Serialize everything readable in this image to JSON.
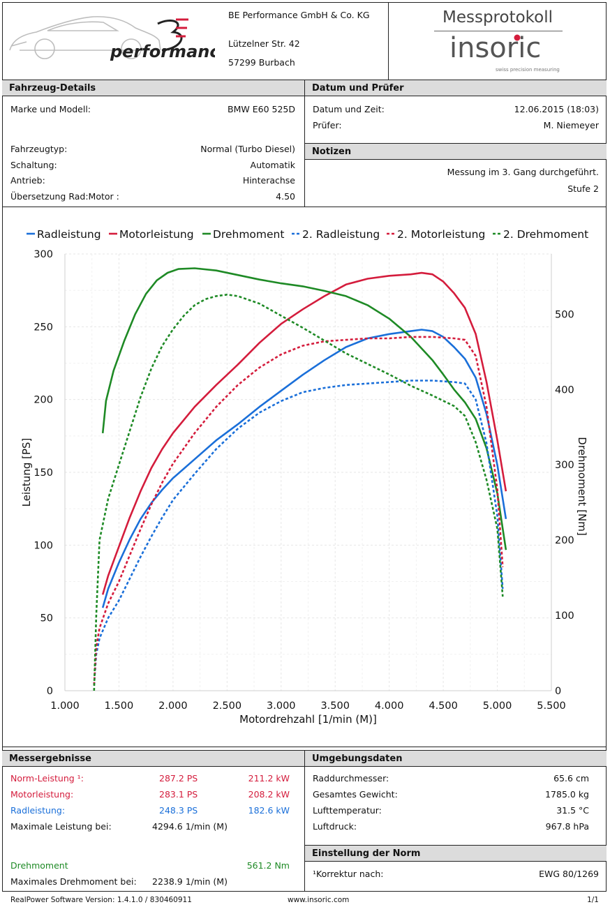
{
  "header": {
    "company_name": "BE Performance GmbH & Co. KG",
    "street": "Lützelner Str. 42",
    "city": "57299 Burbach",
    "logo_text": "performance",
    "protocol_title": "Messprotokoll",
    "brand": "insoric",
    "brand_tagline": "swiss precision measuring"
  },
  "vehicle": {
    "title": "Fahrzeug-Details",
    "make_label": "Marke und Modell:",
    "make_value": "BMW E60 525D",
    "type_label": "Fahrzeugtyp:",
    "type_value": "Normal (Turbo Diesel)",
    "gear_label": "Schaltung:",
    "gear_value": "Automatik",
    "drive_label": "Antrieb:",
    "drive_value": "Hinterachse",
    "ratio_label": "Übersetzung Rad:Motor :",
    "ratio_value": "4.50"
  },
  "date_examiner": {
    "title": "Datum und Prüfer",
    "date_label": "Datum und Zeit:",
    "date_value": "12.06.2015 (18:03)",
    "examiner_label": "Prüfer:",
    "examiner_value": "M. Niemeyer"
  },
  "notes": {
    "title": "Notizen",
    "line1": "Messung im 3. Gang durchgeführt.",
    "line2": "Stufe 2"
  },
  "colors": {
    "wheel": "#1a6fd9",
    "engine": "#d41c3c",
    "torque": "#1e8a25"
  },
  "chart_data": {
    "type": "line",
    "xlabel": "Motordrehzahl [1/min (M)]",
    "ylabel": "Leistung [PS]",
    "y2label": "Drehmoment [Nm]",
    "xlim": [
      1000,
      5500
    ],
    "ylim": [
      0,
      300
    ],
    "y2lim": [
      0,
      580
    ],
    "xticks": [
      1000,
      1500,
      2000,
      2500,
      3000,
      3500,
      4000,
      4500,
      5000,
      5500
    ],
    "xtick_labels": [
      "1.000",
      "1.500",
      "2.000",
      "2.500",
      "3.000",
      "3.500",
      "4.000",
      "4.500",
      "5.000",
      "5.500"
    ],
    "yticks": [
      0,
      50,
      100,
      150,
      200,
      250,
      300
    ],
    "y2ticks": [
      0,
      100,
      200,
      300,
      400,
      500
    ],
    "grid": true,
    "legend": "top",
    "series": [
      {
        "name": "Radleistung",
        "axis": "left",
        "style": "solid",
        "color": "#1a6fd9",
        "x": [
          1350,
          1400,
          1500,
          1600,
          1700,
          1800,
          1900,
          2000,
          2200,
          2400,
          2600,
          2800,
          3000,
          3200,
          3400,
          3600,
          3800,
          4000,
          4200,
          4300,
          4400,
          4500,
          4600,
          4700,
          4800,
          4900,
          5000,
          5080
        ],
        "y": [
          57,
          70,
          88,
          104,
          118,
          129,
          138,
          146,
          159,
          172,
          183,
          195,
          206,
          217,
          227,
          236,
          242,
          245,
          247,
          248,
          247,
          243,
          236,
          228,
          215,
          190,
          155,
          118
        ]
      },
      {
        "name": "Motorleistung",
        "axis": "left",
        "style": "solid",
        "color": "#d41c3c",
        "x": [
          1350,
          1400,
          1500,
          1600,
          1700,
          1800,
          1900,
          2000,
          2200,
          2400,
          2600,
          2800,
          3000,
          3200,
          3400,
          3600,
          3800,
          4000,
          4200,
          4300,
          4400,
          4500,
          4600,
          4700,
          4800,
          4900,
          5000,
          5080
        ],
        "y": [
          66,
          79,
          99,
          119,
          137,
          153,
          166,
          177,
          195,
          210,
          224,
          239,
          252,
          262,
          271,
          279,
          283,
          285,
          286,
          287,
          286,
          281,
          273,
          263,
          245,
          212,
          172,
          137
        ]
      },
      {
        "name": "Drehmoment",
        "axis": "right",
        "style": "solid",
        "color": "#1e8a25",
        "x": [
          1350,
          1380,
          1450,
          1550,
          1650,
          1750,
          1850,
          1950,
          2050,
          2200,
          2400,
          2600,
          2800,
          3000,
          3200,
          3400,
          3600,
          3800,
          4000,
          4200,
          4400,
          4500,
          4600,
          4700,
          4800,
          4900,
          5000,
          5080
        ],
        "y": [
          342,
          385,
          425,
          465,
          500,
          527,
          545,
          555,
          560,
          561,
          558,
          552,
          546,
          541,
          537,
          531,
          524,
          512,
          494,
          470,
          439,
          420,
          400,
          383,
          361,
          322,
          262,
          187
        ]
      },
      {
        "name": "2. Radleistung",
        "axis": "left",
        "style": "dashed",
        "color": "#1a6fd9",
        "x": [
          1270,
          1290,
          1320,
          1400,
          1500,
          1600,
          1700,
          1800,
          1900,
          2000,
          2200,
          2400,
          2600,
          2800,
          3000,
          3200,
          3400,
          3600,
          3800,
          4000,
          4200,
          4400,
          4600,
          4700,
          4800,
          4900,
          5000,
          5050
        ],
        "y": [
          4,
          25,
          36,
          50,
          62,
          77,
          92,
          106,
          119,
          131,
          149,
          166,
          180,
          191,
          199,
          205,
          208,
          210,
          211,
          212,
          213,
          213,
          212,
          211,
          200,
          170,
          120,
          70
        ]
      },
      {
        "name": "2. Motorleistung",
        "axis": "left",
        "style": "dashed",
        "color": "#d41c3c",
        "x": [
          1270,
          1290,
          1320,
          1400,
          1500,
          1600,
          1700,
          1800,
          1900,
          2000,
          2200,
          2400,
          2600,
          2800,
          3000,
          3200,
          3400,
          3600,
          3800,
          4000,
          4200,
          4400,
          4600,
          4700,
          4800,
          4900,
          5000,
          5050
        ],
        "y": [
          4,
          30,
          43,
          60,
          75,
          93,
          111,
          128,
          143,
          156,
          177,
          195,
          210,
          222,
          231,
          237,
          240,
          241,
          242,
          242,
          243,
          243,
          242,
          241,
          230,
          195,
          138,
          85
        ]
      },
      {
        "name": "2. Drehmoment",
        "axis": "right",
        "style": "dashed",
        "color": "#1e8a25",
        "x": [
          1270,
          1290,
          1320,
          1400,
          1500,
          1600,
          1700,
          1800,
          1900,
          2000,
          2100,
          2200,
          2300,
          2400,
          2500,
          2600,
          2800,
          3000,
          3200,
          3400,
          3600,
          3800,
          4000,
          4200,
          4400,
          4600,
          4700,
          4800,
          4900,
          5000,
          5050
        ],
        "y": [
          0,
          100,
          200,
          255,
          300,
          345,
          390,
          428,
          458,
          480,
          498,
          512,
          520,
          524,
          526,
          524,
          514,
          498,
          482,
          465,
          448,
          434,
          420,
          405,
          392,
          378,
          365,
          330,
          280,
          215,
          125
        ]
      }
    ]
  },
  "results": {
    "title": "Messergebnisse",
    "norm_label": "Norm-Leistung ¹:",
    "norm_ps": "287.2 PS",
    "norm_kw": "211.2 kW",
    "engine_label": "Motorleistung:",
    "engine_ps": "283.1 PS",
    "engine_kw": "208.2 kW",
    "wheel_label": "Radleistung:",
    "wheel_ps": "248.3 PS",
    "wheel_kw": "182.6 kW",
    "maxpower_label": "Maximale Leistung bei:",
    "maxpower_value": "4294.6 1/min (M)",
    "torque_label": "Drehmoment",
    "torque_value": "561.2 Nm",
    "maxtorque_label": "Maximales Drehmoment bei:",
    "maxtorque_value": "2238.9 1/min (M)"
  },
  "environment": {
    "title": "Umgebungsdaten",
    "wheel_diam_label": "Raddurchmesser:",
    "wheel_diam_value": "65.6 cm",
    "weight_label": "Gesamtes Gewicht:",
    "weight_value": "1785.0 kg",
    "airtemp_label": "Lufttemperatur:",
    "airtemp_value": "31.5 °C",
    "pressure_label": "Luftdruck:",
    "pressure_value": "967.8 hPa"
  },
  "norm": {
    "title": "Einstellung der Norm",
    "correction_label": "¹Korrektur nach:",
    "correction_value": "EWG 80/1269"
  },
  "footer": {
    "version": "RealPower Software Version: 1.4.1.0 / 830460911",
    "website": "www.insoric.com",
    "page": "1/1"
  }
}
